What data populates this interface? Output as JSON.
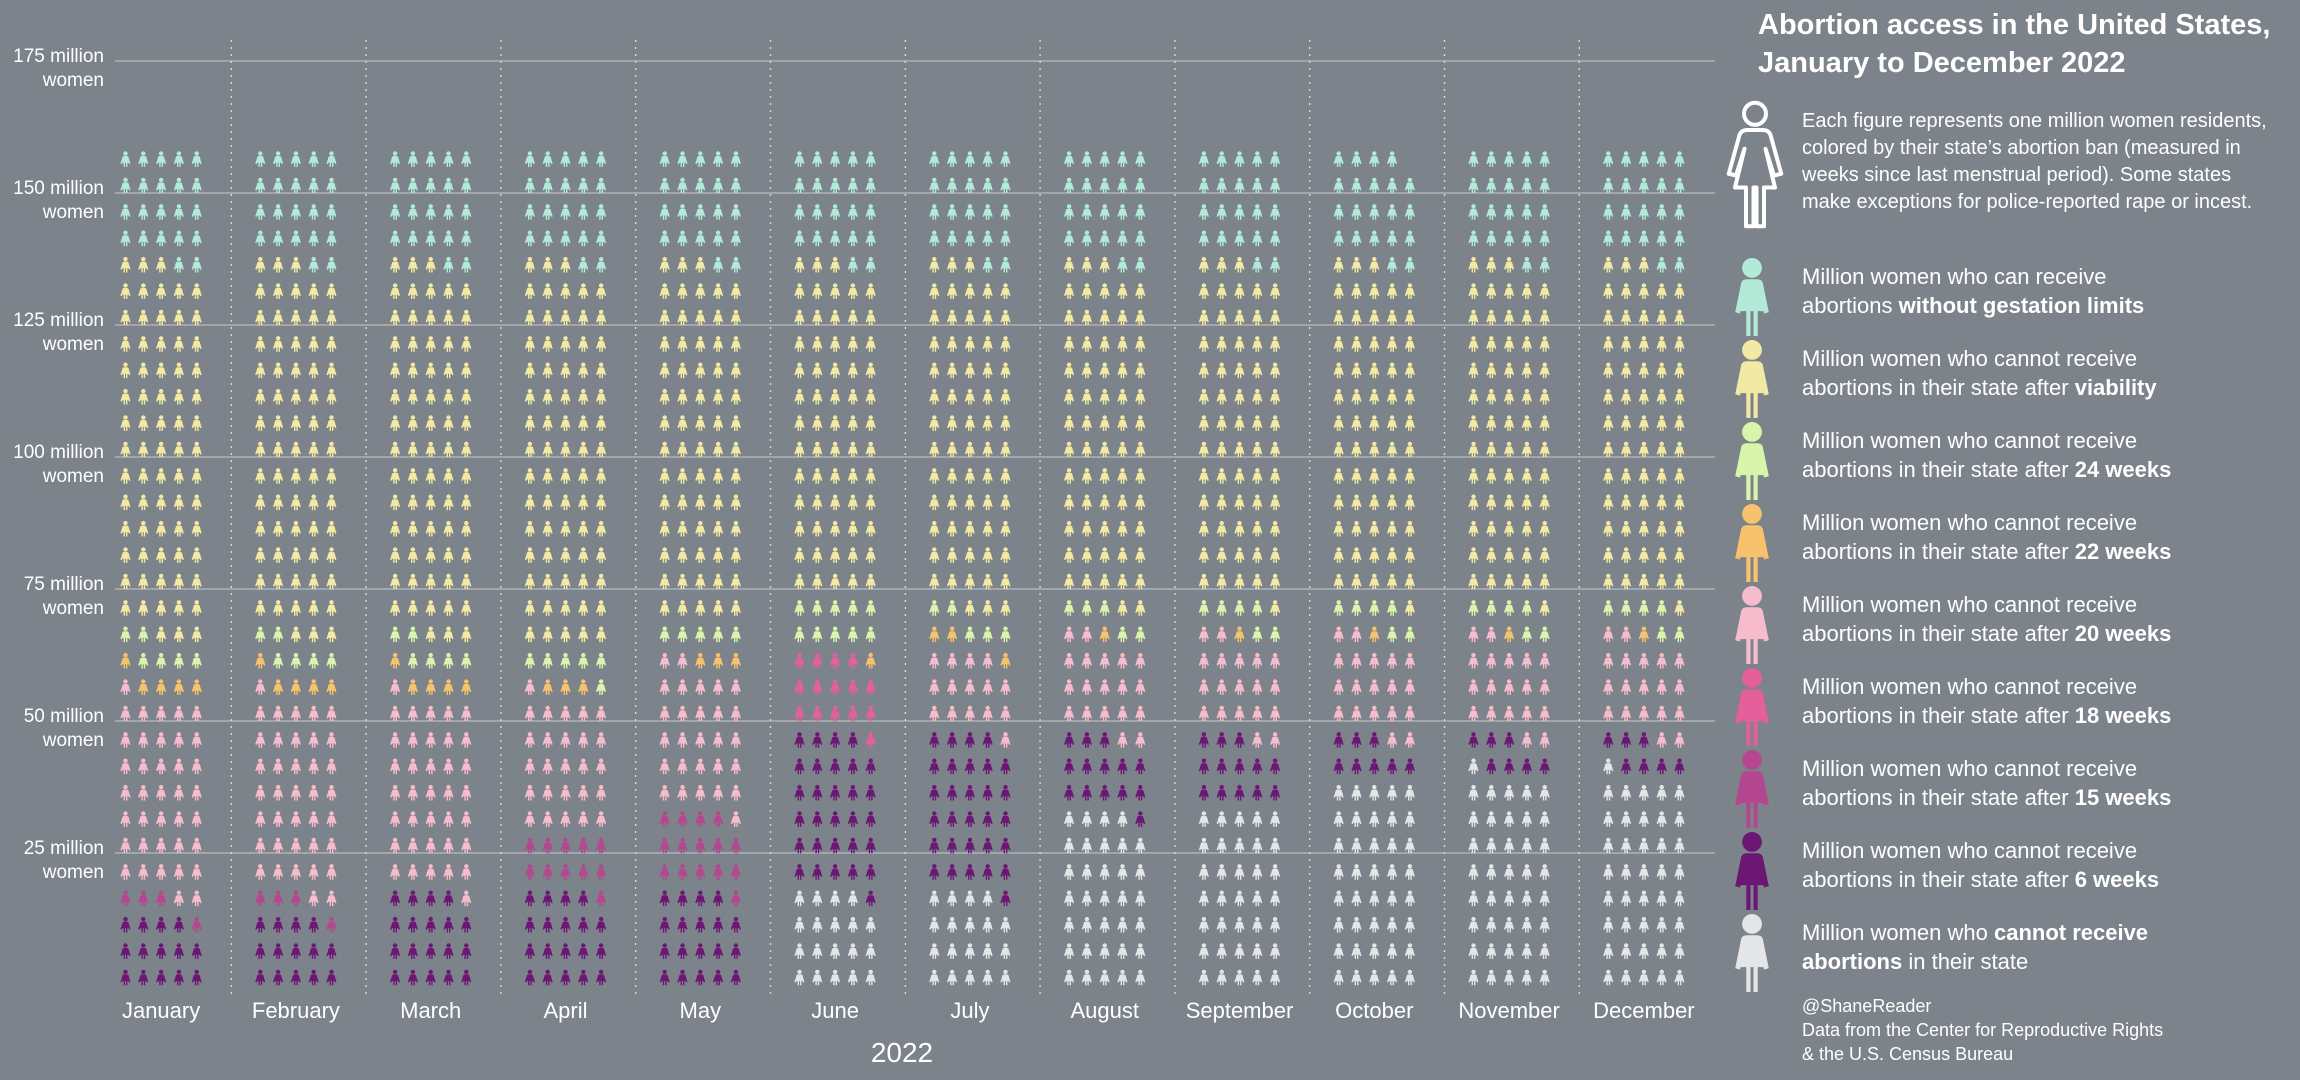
{
  "title_lines": [
    "Abortion access in the United States,",
    "January to December 2022"
  ],
  "description_lines": [
    "Each figure represents one million women residents,",
    "colored by their state’s abortion ban (measured in",
    "weeks since last menstrual period). Some states",
    "make exceptions for police-reported rape or incest."
  ],
  "legend": [
    {
      "key": "none",
      "color": "#b2e9d7",
      "line1": "Million women who can receive",
      "line2_pre": "abortions ",
      "line2_bold": "without gestation limits",
      "line2_post": ""
    },
    {
      "key": "viability",
      "color": "#f1e9a4",
      "line1": "Million women who cannot receive",
      "line2_pre": "abortions in their state after ",
      "line2_bold": "viability",
      "line2_post": ""
    },
    {
      "key": "w24",
      "color": "#d9f5ab",
      "line1": "Million women who cannot receive",
      "line2_pre": "abortions in their state after ",
      "line2_bold": "24 weeks",
      "line2_post": ""
    },
    {
      "key": "w22",
      "color": "#f6c26e",
      "line1": "Million women who cannot receive",
      "line2_pre": "abortions in their state after ",
      "line2_bold": "22 weeks",
      "line2_post": ""
    },
    {
      "key": "w20",
      "color": "#f6bccb",
      "line1": "Million women who cannot receive",
      "line2_pre": "abortions in their state after ",
      "line2_bold": "20 weeks",
      "line2_post": ""
    },
    {
      "key": "w18",
      "color": "#e5609b",
      "line1": "Million women who cannot receive",
      "line2_pre": "abortions in their state after ",
      "line2_bold": "18 weeks",
      "line2_post": ""
    },
    {
      "key": "w15",
      "color": "#b4478f",
      "line1": "Million women who cannot receive",
      "line2_pre": "abortions in their state after ",
      "line2_bold": "15 weeks",
      "line2_post": ""
    },
    {
      "key": "w6",
      "color": "#6c1774",
      "line1": "Million women who cannot receive",
      "line2_pre": "abortions in their state after ",
      "line2_bold": "6 weeks",
      "line2_post": ""
    },
    {
      "key": "ban",
      "color": "#e4e5e6",
      "line1_pre": "Million women who ",
      "line1_bold": "cannot receive",
      "line2_pre": "",
      "line2_bold": "abortions",
      "line2_post": " in their state"
    }
  ],
  "credit_lines": [
    "@ShaneReader",
    "Data from the Center for Reproductive Rights",
    "& the U.S. Census Bureau"
  ],
  "chart_data": {
    "type": "pictogram-stacked-bar",
    "title": "Abortion access in the United States, January to December 2022",
    "xlabel": "2022",
    "ylabel": "Million women",
    "yticks": [
      {
        "value": 25,
        "line1": "25 million",
        "line2": "women"
      },
      {
        "value": 50,
        "line1": "50 million",
        "line2": "women"
      },
      {
        "value": 75,
        "line1": "75 million",
        "line2": "women"
      },
      {
        "value": 100,
        "line1": "100 million",
        "line2": "women"
      },
      {
        "value": 125,
        "line1": "125 million",
        "line2": "women"
      },
      {
        "value": 150,
        "line1": "150 million",
        "line2": "women"
      },
      {
        "value": 175,
        "line1": "175 million",
        "line2": "women"
      }
    ],
    "ylim": [
      0,
      175
    ],
    "unit": "1 figure = 1 million women",
    "columns_per_month": 5,
    "categories": [
      "January",
      "February",
      "March",
      "April",
      "May",
      "June",
      "July",
      "August",
      "September",
      "October",
      "November",
      "December"
    ],
    "stack_order": [
      "ban",
      "w6",
      "w15",
      "w18",
      "w20",
      "w22",
      "w24",
      "viability",
      "none"
    ],
    "series_values": {
      "ban": [
        0,
        0,
        0,
        0,
        0,
        19,
        19,
        34,
        35,
        40,
        41,
        41
      ],
      "w6": [
        14,
        14,
        19,
        19,
        19,
        30,
        30,
        14,
        13,
        8,
        7,
        7
      ],
      "w15": [
        4,
        4,
        0,
        11,
        15,
        0,
        0,
        0,
        0,
        0,
        0,
        0
      ],
      "w18": [
        0,
        0,
        0,
        0,
        0,
        15,
        0,
        0,
        0,
        0,
        0,
        0
      ],
      "w20": [
        38,
        38,
        37,
        26,
        28,
        0,
        15,
        19,
        19,
        19,
        19,
        19
      ],
      "w22": [
        5,
        5,
        5,
        3,
        3,
        1,
        3,
        1,
        1,
        1,
        1,
        1
      ],
      "w24": [
        6,
        6,
        6,
        6,
        5,
        10,
        5,
        5,
        6,
        6,
        6,
        6
      ],
      "viability": [
        71,
        71,
        71,
        73,
        68,
        63,
        66,
        65,
        64,
        64,
        64,
        64
      ],
      "none": [
        22,
        22,
        22,
        22,
        22,
        22,
        22,
        22,
        22,
        21,
        22,
        22
      ]
    }
  }
}
